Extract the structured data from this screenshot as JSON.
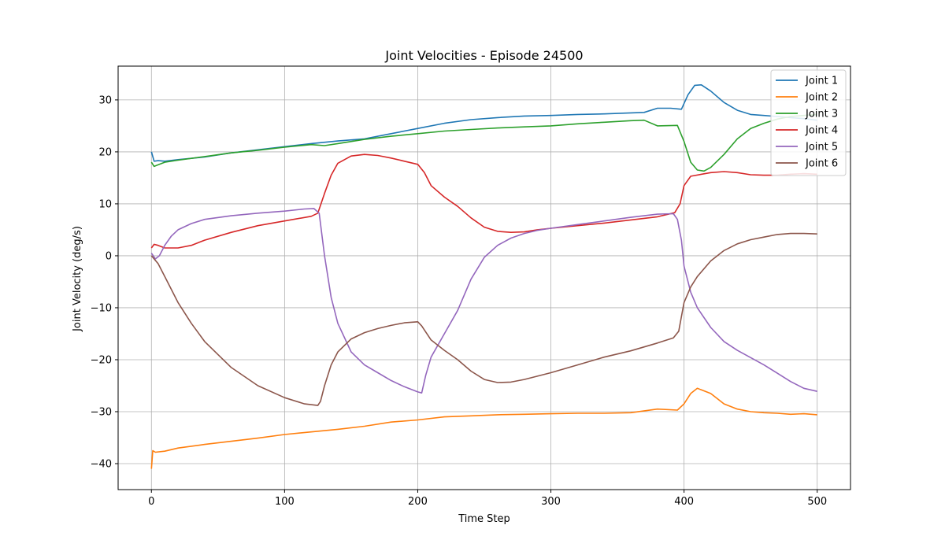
{
  "chart_data": {
    "type": "line",
    "title": "Joint Velocities - Episode 24500",
    "xlabel": "Time Step",
    "ylabel": "Joint Velocity (deg/s)",
    "xlim": [
      -25,
      525
    ],
    "ylim": [
      -45,
      36.5
    ],
    "xticks": [
      0,
      100,
      200,
      300,
      400,
      500
    ],
    "yticks": [
      -40,
      -30,
      -20,
      -10,
      0,
      10,
      20,
      30
    ],
    "grid": true,
    "legend_position": "top-right",
    "series": [
      {
        "name": "Joint 1",
        "color": "#1f77b4",
        "points": [
          [
            0,
            20
          ],
          [
            2,
            18.2
          ],
          [
            5,
            18.3
          ],
          [
            10,
            18.2
          ],
          [
            20,
            18.5
          ],
          [
            40,
            19
          ],
          [
            60,
            19.8
          ],
          [
            80,
            20.4
          ],
          [
            100,
            21
          ],
          [
            120,
            21.6
          ],
          [
            140,
            22.1
          ],
          [
            160,
            22.5
          ],
          [
            180,
            23.5
          ],
          [
            200,
            24.5
          ],
          [
            220,
            25.5
          ],
          [
            240,
            26.2
          ],
          [
            260,
            26.6
          ],
          [
            280,
            26.9
          ],
          [
            300,
            27
          ],
          [
            320,
            27.2
          ],
          [
            340,
            27.3
          ],
          [
            360,
            27.5
          ],
          [
            370,
            27.6
          ],
          [
            380,
            28.4
          ],
          [
            390,
            28.4
          ],
          [
            398,
            28.2
          ],
          [
            403,
            31
          ],
          [
            408,
            32.8
          ],
          [
            413,
            32.9
          ],
          [
            420,
            31.7
          ],
          [
            430,
            29.5
          ],
          [
            440,
            28
          ],
          [
            450,
            27.2
          ],
          [
            460,
            27
          ],
          [
            470,
            26.8
          ],
          [
            480,
            26.6
          ],
          [
            490,
            26.4
          ],
          [
            500,
            26.1
          ]
        ]
      },
      {
        "name": "Joint 2",
        "color": "#ff7f0e",
        "points": [
          [
            0,
            -41
          ],
          [
            1,
            -37.5
          ],
          [
            3,
            -37.8
          ],
          [
            10,
            -37.6
          ],
          [
            20,
            -37
          ],
          [
            40,
            -36.3
          ],
          [
            60,
            -35.7
          ],
          [
            80,
            -35.1
          ],
          [
            100,
            -34.4
          ],
          [
            120,
            -33.9
          ],
          [
            140,
            -33.4
          ],
          [
            160,
            -32.8
          ],
          [
            180,
            -32
          ],
          [
            200,
            -31.6
          ],
          [
            220,
            -31
          ],
          [
            240,
            -30.8
          ],
          [
            260,
            -30.6
          ],
          [
            280,
            -30.5
          ],
          [
            300,
            -30.4
          ],
          [
            320,
            -30.3
          ],
          [
            340,
            -30.3
          ],
          [
            360,
            -30.2
          ],
          [
            380,
            -29.5
          ],
          [
            395,
            -29.7
          ],
          [
            400,
            -28.5
          ],
          [
            405,
            -26.5
          ],
          [
            410,
            -25.5
          ],
          [
            420,
            -26.5
          ],
          [
            430,
            -28.5
          ],
          [
            440,
            -29.5
          ],
          [
            450,
            -30
          ],
          [
            460,
            -30.2
          ],
          [
            470,
            -30.3
          ],
          [
            480,
            -30.5
          ],
          [
            490,
            -30.4
          ],
          [
            500,
            -30.6
          ]
        ]
      },
      {
        "name": "Joint 3",
        "color": "#2ca02c",
        "points": [
          [
            0,
            18
          ],
          [
            2,
            17.2
          ],
          [
            5,
            17.5
          ],
          [
            10,
            18
          ],
          [
            20,
            18.4
          ],
          [
            40,
            19.1
          ],
          [
            60,
            19.8
          ],
          [
            80,
            20.3
          ],
          [
            100,
            20.9
          ],
          [
            120,
            21.4
          ],
          [
            130,
            21.2
          ],
          [
            140,
            21.6
          ],
          [
            160,
            22.4
          ],
          [
            180,
            23
          ],
          [
            200,
            23.5
          ],
          [
            220,
            24
          ],
          [
            240,
            24.3
          ],
          [
            260,
            24.6
          ],
          [
            280,
            24.8
          ],
          [
            300,
            25
          ],
          [
            320,
            25.4
          ],
          [
            340,
            25.7
          ],
          [
            360,
            26
          ],
          [
            370,
            26.1
          ],
          [
            380,
            25
          ],
          [
            395,
            25.1
          ],
          [
            400,
            22
          ],
          [
            405,
            18
          ],
          [
            410,
            16.5
          ],
          [
            415,
            16.3
          ],
          [
            420,
            17
          ],
          [
            430,
            19.5
          ],
          [
            440,
            22.5
          ],
          [
            450,
            24.5
          ],
          [
            460,
            25.5
          ],
          [
            470,
            26.3
          ],
          [
            480,
            26.8
          ],
          [
            490,
            27
          ],
          [
            500,
            27.2
          ]
        ]
      },
      {
        "name": "Joint 4",
        "color": "#d62728",
        "points": [
          [
            0,
            1.5
          ],
          [
            2,
            2.2
          ],
          [
            5,
            2
          ],
          [
            10,
            1.5
          ],
          [
            20,
            1.5
          ],
          [
            30,
            2
          ],
          [
            40,
            3
          ],
          [
            60,
            4.5
          ],
          [
            80,
            5.8
          ],
          [
            100,
            6.7
          ],
          [
            120,
            7.6
          ],
          [
            125,
            8.2
          ],
          [
            130,
            12
          ],
          [
            135,
            15.5
          ],
          [
            140,
            17.8
          ],
          [
            150,
            19.2
          ],
          [
            160,
            19.5
          ],
          [
            170,
            19.3
          ],
          [
            180,
            18.8
          ],
          [
            190,
            18.2
          ],
          [
            200,
            17.6
          ],
          [
            205,
            16
          ],
          [
            210,
            13.5
          ],
          [
            220,
            11.3
          ],
          [
            230,
            9.5
          ],
          [
            240,
            7.3
          ],
          [
            250,
            5.5
          ],
          [
            260,
            4.7
          ],
          [
            270,
            4.5
          ],
          [
            280,
            4.6
          ],
          [
            290,
            5
          ],
          [
            300,
            5.3
          ],
          [
            320,
            5.8
          ],
          [
            340,
            6.3
          ],
          [
            360,
            6.9
          ],
          [
            380,
            7.5
          ],
          [
            393,
            8.3
          ],
          [
            397,
            10
          ],
          [
            400,
            13.5
          ],
          [
            405,
            15.3
          ],
          [
            420,
            16
          ],
          [
            430,
            16.2
          ],
          [
            440,
            16
          ],
          [
            450,
            15.6
          ],
          [
            460,
            15.5
          ],
          [
            470,
            15.5
          ],
          [
            480,
            15.7
          ],
          [
            490,
            15.8
          ],
          [
            500,
            15.7
          ]
        ]
      },
      {
        "name": "Joint 5",
        "color": "#9467bd",
        "points": [
          [
            0,
            0.5
          ],
          [
            3,
            -0.6
          ],
          [
            6,
            0
          ],
          [
            10,
            2
          ],
          [
            15,
            3.8
          ],
          [
            20,
            5
          ],
          [
            30,
            6.2
          ],
          [
            40,
            7
          ],
          [
            60,
            7.7
          ],
          [
            80,
            8.2
          ],
          [
            100,
            8.6
          ],
          [
            115,
            9
          ],
          [
            122,
            9.1
          ],
          [
            126,
            8.2
          ],
          [
            130,
            0
          ],
          [
            135,
            -8
          ],
          [
            140,
            -13
          ],
          [
            150,
            -18.5
          ],
          [
            160,
            -21
          ],
          [
            170,
            -22.5
          ],
          [
            180,
            -24
          ],
          [
            190,
            -25.2
          ],
          [
            200,
            -26.2
          ],
          [
            203,
            -26.4
          ],
          [
            206,
            -23
          ],
          [
            210,
            -19.5
          ],
          [
            220,
            -15
          ],
          [
            230,
            -10.5
          ],
          [
            240,
            -4.5
          ],
          [
            250,
            -0.3
          ],
          [
            260,
            2
          ],
          [
            270,
            3.4
          ],
          [
            280,
            4.3
          ],
          [
            290,
            4.9
          ],
          [
            300,
            5.3
          ],
          [
            320,
            6
          ],
          [
            340,
            6.7
          ],
          [
            360,
            7.4
          ],
          [
            380,
            8
          ],
          [
            392,
            8.1
          ],
          [
            395,
            7
          ],
          [
            398,
            3
          ],
          [
            400,
            -2
          ],
          [
            405,
            -7
          ],
          [
            410,
            -10
          ],
          [
            420,
            -13.8
          ],
          [
            430,
            -16.5
          ],
          [
            440,
            -18.2
          ],
          [
            450,
            -19.6
          ],
          [
            460,
            -21
          ],
          [
            470,
            -22.6
          ],
          [
            480,
            -24.2
          ],
          [
            490,
            -25.5
          ],
          [
            500,
            -26.1
          ]
        ]
      },
      {
        "name": "Joint 6",
        "color": "#8c564b",
        "points": [
          [
            0,
            0
          ],
          [
            5,
            -1.5
          ],
          [
            10,
            -4
          ],
          [
            20,
            -9
          ],
          [
            30,
            -13
          ],
          [
            40,
            -16.5
          ],
          [
            60,
            -21.5
          ],
          [
            80,
            -25
          ],
          [
            100,
            -27.3
          ],
          [
            115,
            -28.5
          ],
          [
            125,
            -28.8
          ],
          [
            127,
            -28
          ],
          [
            130,
            -25
          ],
          [
            135,
            -21
          ],
          [
            140,
            -18.5
          ],
          [
            150,
            -16
          ],
          [
            160,
            -14.8
          ],
          [
            170,
            -14
          ],
          [
            180,
            -13.4
          ],
          [
            190,
            -12.9
          ],
          [
            200,
            -12.7
          ],
          [
            203,
            -13.5
          ],
          [
            210,
            -16.2
          ],
          [
            220,
            -18.2
          ],
          [
            230,
            -20
          ],
          [
            240,
            -22.2
          ],
          [
            250,
            -23.8
          ],
          [
            260,
            -24.4
          ],
          [
            270,
            -24.3
          ],
          [
            280,
            -23.8
          ],
          [
            300,
            -22.5
          ],
          [
            320,
            -21
          ],
          [
            340,
            -19.5
          ],
          [
            360,
            -18.3
          ],
          [
            380,
            -16.8
          ],
          [
            392,
            -15.8
          ],
          [
            396,
            -14.5
          ],
          [
            400,
            -9
          ],
          [
            405,
            -6
          ],
          [
            410,
            -4
          ],
          [
            420,
            -1
          ],
          [
            430,
            1
          ],
          [
            440,
            2.3
          ],
          [
            450,
            3.1
          ],
          [
            460,
            3.6
          ],
          [
            470,
            4.1
          ],
          [
            480,
            4.3
          ],
          [
            490,
            4.3
          ],
          [
            500,
            4.2
          ]
        ]
      }
    ]
  }
}
